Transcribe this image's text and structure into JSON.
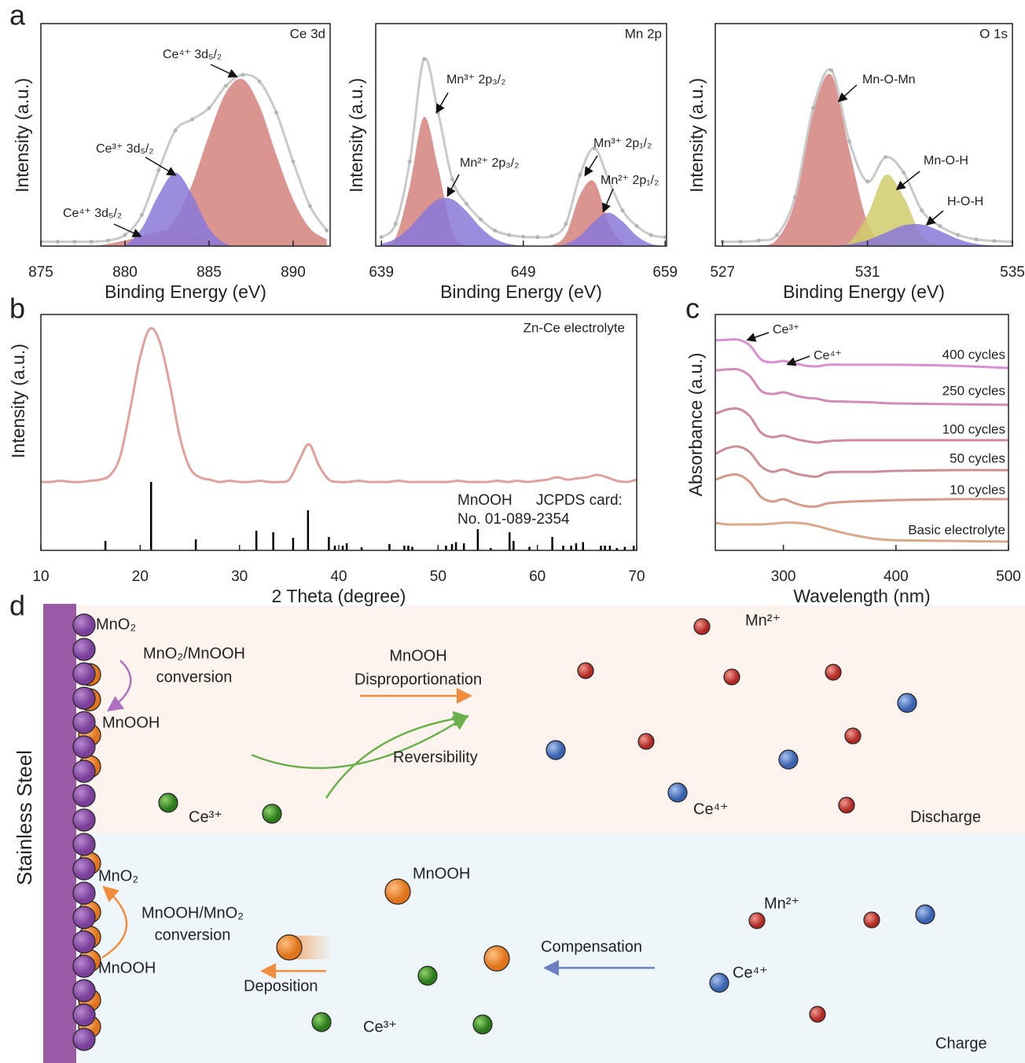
{
  "panel_labels": [
    "a",
    "b",
    "c",
    "d"
  ],
  "chart_data": [
    {
      "type": "area",
      "title": "Ce 3d",
      "xlabel": "Binding Energy (eV)",
      "ylabel": "Intensity (a.u.)",
      "xlim": [
        875,
        892.2
      ],
      "xticks": [
        875,
        880,
        885,
        890
      ],
      "ylim": [
        0,
        100
      ],
      "x": [
        875,
        876,
        877,
        878,
        879,
        880,
        881,
        882,
        883,
        884,
        885,
        886,
        887,
        888,
        889,
        890,
        891,
        892
      ],
      "envelope": {
        "color": "#c9c9c9",
        "values": [
          2,
          2,
          2,
          2,
          2.5,
          5,
          14,
          34,
          52,
          57,
          62,
          72,
          77,
          74,
          60,
          38,
          18,
          7
        ]
      },
      "series": [
        {
          "name": "Ce⁴⁺ 3d₅/₂",
          "color": "#d4827e",
          "values": [
            0,
            0,
            0,
            0,
            0,
            0.2,
            1.1,
            4,
            12,
            28,
            50,
            69,
            75,
            63,
            41,
            21,
            8,
            3
          ]
        },
        {
          "name": "Ce⁴⁺ 3d₅/₂",
          "color": "#d4827e",
          "values": [
            0,
            0,
            0,
            0,
            1,
            2.5,
            4.5,
            6.6,
            6.8,
            4.6,
            2,
            0.5,
            0,
            0,
            0,
            0,
            0,
            0
          ]
        },
        {
          "name": "Ce³⁺ 3d₅/₂",
          "color": "#8a78d8",
          "values": [
            0,
            0,
            0,
            0,
            0,
            0.5,
            8,
            23,
            33,
            23,
            8,
            1,
            0,
            0,
            0,
            0,
            0,
            0
          ]
        }
      ]
    },
    {
      "type": "area",
      "title": "Mn 2p",
      "xlabel": "Binding Energy (eV)",
      "ylabel": "Intensity (a.u.)",
      "xlim": [
        638.6,
        659.1
      ],
      "xticks": [
        639,
        649,
        659
      ],
      "ylim": [
        0,
        100
      ],
      "x": [
        639,
        640,
        641,
        642,
        643,
        644,
        645,
        646,
        647,
        648,
        649,
        650,
        651,
        652,
        653,
        654,
        655,
        656,
        657,
        658,
        659
      ],
      "envelope": {
        "color": "#c9c9c9",
        "values": [
          4,
          10,
          38,
          84,
          60,
          30,
          19,
          12,
          7,
          5,
          4.2,
          4,
          4.5,
          10,
          32,
          44,
          30,
          16,
          9,
          5,
          4
        ]
      },
      "series": [
        {
          "name": "Mn³⁺ 2p₃/₂",
          "color": "#d4827e",
          "values": [
            0.2,
            3.8,
            27,
            58,
            35,
            6.3,
            0.3,
            0,
            0,
            0,
            0,
            0,
            0,
            0,
            0,
            0,
            0,
            0,
            0,
            0,
            0
          ]
        },
        {
          "name": "Mn²⁺ 2p₃/₂",
          "color": "#8a78d8",
          "values": [
            1,
            3.3,
            8.4,
            15.6,
            21,
            21,
            15.6,
            8.4,
            3.3,
            1,
            0.2,
            0,
            0,
            0,
            0,
            0,
            0,
            0,
            0,
            0,
            0
          ]
        },
        {
          "name": "Mn³⁺ 2p₁/₂",
          "color": "#d4827e",
          "values": [
            0,
            0,
            0,
            0,
            0,
            0,
            0,
            0,
            0,
            0,
            0,
            0,
            0.3,
            5.2,
            23,
            29,
            11,
            1.2,
            0,
            0,
            0
          ]
        },
        {
          "name": "Mn²⁺ 2p₁/₂",
          "color": "#8a78d8",
          "values": [
            0,
            0,
            0,
            0,
            0,
            0,
            0,
            0,
            0,
            0,
            0,
            0,
            0,
            1,
            4.6,
            11,
            15,
            11,
            4.6,
            1,
            0.1
          ]
        }
      ]
    },
    {
      "type": "area",
      "title": "O 1s",
      "xlabel": "Binding Energy (eV)",
      "ylabel": "Intensity (a.u.)",
      "xlim": [
        526.8,
        535
      ],
      "xticks": [
        527,
        531,
        535
      ],
      "ylim": [
        0,
        100
      ],
      "x": [
        527,
        527.5,
        528,
        528.5,
        529,
        529.5,
        530,
        530.5,
        531,
        531.5,
        532,
        532.5,
        533,
        533.5,
        534,
        534.5,
        535
      ],
      "envelope": {
        "color": "#c9c9c9",
        "values": [
          2,
          2,
          2.5,
          5,
          22,
          62,
          79,
          47,
          29,
          40,
          33,
          16,
          9,
          5,
          3,
          2.3,
          2
        ]
      },
      "series": [
        {
          "name": "Mn-O-Mn",
          "color": "#d4827e",
          "values": [
            0,
            0,
            0.2,
            3,
            20,
            60,
            77,
            43,
            10.5,
            1.1,
            0.1,
            0,
            0,
            0,
            0,
            0,
            0
          ]
        },
        {
          "name": "Mn-O-H",
          "color": "#cfcc6a",
          "values": [
            0,
            0,
            0,
            0,
            0,
            0,
            0.1,
            1.7,
            14,
            32,
            22,
            4.5,
            0.3,
            0,
            0,
            0,
            0
          ]
        },
        {
          "name": "H-O-H",
          "color": "#8a78d8",
          "values": [
            0,
            0,
            0,
            0,
            0,
            0,
            0.2,
            0.8,
            2.7,
            6,
            9.3,
            9.7,
            6.8,
            3.2,
            1,
            0.2,
            0
          ]
        }
      ]
    },
    {
      "type": "line",
      "xlabel": "2 Theta (degree)",
      "ylabel": "Intensity (a.u.)",
      "xlim": [
        10,
        70
      ],
      "xticks": [
        10,
        20,
        30,
        40,
        50,
        60,
        70
      ],
      "ylim": [
        0,
        100
      ],
      "x": [
        10,
        11,
        12,
        13,
        14,
        15,
        16,
        17,
        18,
        19,
        20,
        21,
        22,
        23,
        24,
        25,
        26,
        27,
        28,
        29,
        30,
        31,
        32,
        33,
        34,
        35,
        36,
        37,
        38,
        39,
        40,
        41,
        42,
        43,
        44,
        45,
        46,
        47,
        48,
        49,
        50,
        51,
        52,
        53,
        54,
        55,
        56,
        57,
        58,
        59,
        60,
        61,
        62,
        63,
        64,
        65,
        66,
        67,
        68,
        69,
        70
      ],
      "series": [
        {
          "name": "Zn-Ce electrolyte",
          "color": "#e0a09c",
          "values": [
            29,
            29,
            29.5,
            29,
            29,
            29.5,
            30,
            32,
            40,
            60,
            82,
            94,
            88,
            70,
            48,
            35,
            31,
            30,
            29,
            29.5,
            29,
            29,
            29.5,
            29,
            29,
            30,
            38,
            45,
            36,
            30,
            29,
            29,
            29.5,
            29,
            29,
            29,
            29.5,
            29,
            29,
            29,
            29,
            29,
            29.5,
            29,
            29,
            29,
            29.5,
            29,
            29.5,
            29,
            29.5,
            30,
            31,
            30,
            30.5,
            31,
            32,
            31,
            29.5,
            29,
            30
          ]
        }
      ],
      "reference": {
        "name": "MnOOH",
        "source": "JCPDS card:",
        "card": "No. 01-089-2354",
        "color": "#000000",
        "x": [
          16.5,
          21.1,
          25.6,
          31.7,
          33.4,
          35.4,
          36.9,
          39.0,
          39.6,
          40.4,
          40.8,
          42.3,
          45.1,
          46.6,
          47.0,
          47.4,
          50.8,
          51.4,
          51.8,
          52.6,
          54.0,
          55.3,
          57.2,
          57.6,
          59.2,
          61.5,
          62.6,
          63.4,
          63.9,
          64.6,
          66.4,
          66.8,
          67.3,
          68.0,
          68.8,
          69.7
        ],
        "values": [
          4,
          29,
          4.7,
          8.3,
          7.7,
          5.3,
          17,
          5.7,
          2,
          2,
          3,
          1.3,
          2.7,
          2,
          2,
          1.5,
          2,
          2.7,
          3.5,
          3,
          9,
          1,
          7.7,
          4,
          1.5,
          5.7,
          2,
          2,
          3,
          3.5,
          2,
          2,
          2,
          1,
          1.5,
          2
        ]
      }
    },
    {
      "type": "line",
      "xlabel": "Wavelength (nm)",
      "ylabel": "Absorbance (a.u.)",
      "xlim": [
        239.5,
        500
      ],
      "xticks": [
        300,
        400,
        500
      ],
      "ylim": [
        0,
        100
      ],
      "x": [
        240,
        250,
        260,
        270,
        280,
        290,
        300,
        310,
        320,
        330,
        340,
        360,
        380,
        400,
        450,
        500
      ],
      "annotations": [
        "Ce³⁺",
        "Ce⁴⁺"
      ],
      "series": [
        {
          "name": "400 cycles",
          "color": "#d98fd0",
          "values": [
            89,
            89.3,
            89.3,
            87,
            81,
            79.7,
            80.3,
            79.3,
            78.3,
            78,
            78.7,
            78.7,
            78.7,
            78.7,
            78.3,
            77.3
          ]
        },
        {
          "name": "250 cycles",
          "color": "#d48ab8",
          "values": [
            76.3,
            76.7,
            76.7,
            74,
            67.7,
            66.3,
            67,
            65.7,
            64.7,
            64.3,
            63.3,
            63,
            62.7,
            62.3,
            62,
            61.7
          ]
        },
        {
          "name": "100 cycles",
          "color": "#cf8aa0",
          "values": [
            58,
            59.7,
            60,
            57,
            50,
            48,
            48.7,
            47.3,
            46.3,
            45.7,
            46.3,
            46.7,
            46.7,
            46.7,
            46.7,
            46.7
          ]
        },
        {
          "name": "50 cycles",
          "color": "#cc8e95",
          "values": [
            41,
            43.3,
            44,
            41.7,
            35.7,
            33.3,
            34.3,
            32.7,
            31.7,
            31.3,
            33,
            33.3,
            33.3,
            33.7,
            34,
            34
          ]
        },
        {
          "name": "10 cycles",
          "color": "#d69a8c",
          "values": [
            30,
            31.7,
            32,
            29,
            22.7,
            20.7,
            21.7,
            20,
            18.7,
            18.7,
            20,
            20.7,
            21,
            21.3,
            21.7,
            21.7
          ]
        },
        {
          "name": "Basic electrolyte",
          "color": "#d9a98a",
          "values": [
            11.7,
            11,
            11,
            11,
            11,
            11.3,
            11.7,
            11.7,
            11.3,
            10.3,
            9,
            6.7,
            5,
            4.3,
            4,
            3.7
          ]
        }
      ]
    }
  ],
  "diagram": {
    "substrate": "Stainless Steel",
    "discharge": {
      "texts": [
        "MnO₂",
        "MnO₂/MnOOH",
        "conversion",
        "MnOOH",
        "MnOOH",
        "Disproportionation",
        "Reversibility",
        "Ce³⁺",
        "Mn²⁺",
        "Ce⁴⁺",
        "Discharge"
      ]
    },
    "charge": {
      "texts": [
        "MnO₂",
        "MnOOH/MnO₂",
        "conversion",
        "MnOOH",
        "MnOOH",
        "Deposition",
        "Compensation",
        "Mn²⁺",
        "Ce⁴⁺",
        "Ce³⁺",
        "Charge"
      ]
    }
  }
}
